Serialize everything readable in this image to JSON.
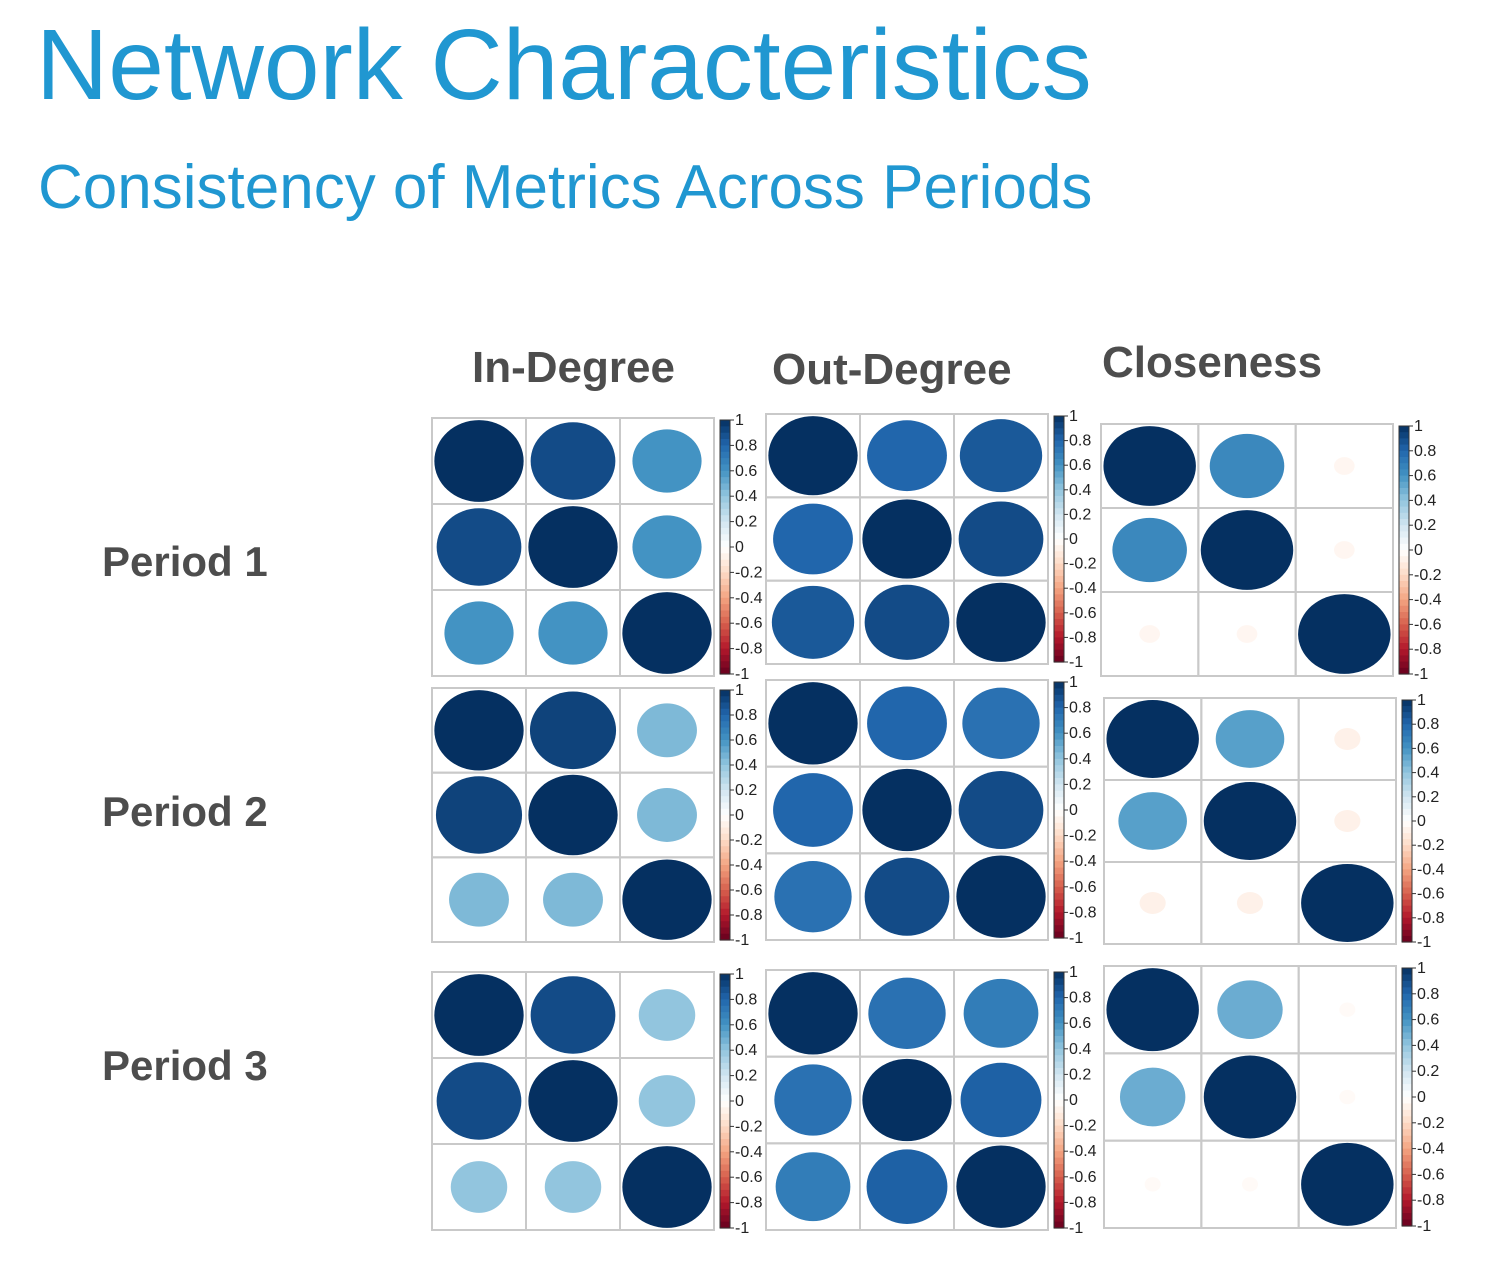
{
  "title": "Network Characteristics",
  "subtitle": "Consistency of Metrics Across Periods",
  "columns": [
    "In-Degree",
    "Out-Degree",
    "Closeness"
  ],
  "rows": [
    "Period 1",
    "Period 2",
    "Period 3"
  ],
  "chart_data": {
    "type": "heatmap",
    "subtype": "correlation-circle-matrix",
    "colorbar": {
      "range": [
        -1,
        1
      ],
      "tick_labels": [
        "1",
        "0.8",
        "0.6",
        "0.4",
        "0.2",
        "0",
        "-0.2",
        "-0.4",
        "-0.6",
        "-0.8",
        "-1"
      ]
    },
    "palette": {
      "negative": "#67001f",
      "neutral": "#ffffff",
      "positive": "#053061"
    },
    "panels": [
      {
        "row": "Period 1",
        "column": "In-Degree",
        "matrix": [
          [
            1,
            0.9,
            0.6
          ],
          [
            0.9,
            1,
            0.6
          ],
          [
            0.6,
            0.6,
            1
          ]
        ]
      },
      {
        "row": "Period 1",
        "column": "Out-Degree",
        "matrix": [
          [
            1,
            0.8,
            0.85
          ],
          [
            0.8,
            1,
            0.9
          ],
          [
            0.85,
            0.9,
            1
          ]
        ]
      },
      {
        "row": "Period 1",
        "column": "Closeness",
        "matrix": [
          [
            1,
            0.65,
            -0.05
          ],
          [
            0.65,
            1,
            -0.05
          ],
          [
            -0.05,
            -0.05,
            1
          ]
        ]
      },
      {
        "row": "Period 2",
        "column": "In-Degree",
        "matrix": [
          [
            1,
            0.93,
            0.45
          ],
          [
            0.93,
            1,
            0.45
          ],
          [
            0.45,
            0.45,
            1
          ]
        ]
      },
      {
        "row": "Period 2",
        "column": "Out-Degree",
        "matrix": [
          [
            1,
            0.8,
            0.75
          ],
          [
            0.8,
            1,
            0.9
          ],
          [
            0.75,
            0.9,
            1
          ]
        ]
      },
      {
        "row": "Period 2",
        "column": "Closeness",
        "matrix": [
          [
            1,
            0.55,
            -0.08
          ],
          [
            0.55,
            1,
            -0.08
          ],
          [
            -0.08,
            -0.08,
            1
          ]
        ]
      },
      {
        "row": "Period 3",
        "column": "In-Degree",
        "matrix": [
          [
            1,
            0.9,
            0.4
          ],
          [
            0.9,
            1,
            0.4
          ],
          [
            0.4,
            0.4,
            1
          ]
        ]
      },
      {
        "row": "Period 3",
        "column": "Out-Degree",
        "matrix": [
          [
            1,
            0.75,
            0.7
          ],
          [
            0.75,
            1,
            0.82
          ],
          [
            0.7,
            0.82,
            1
          ]
        ]
      },
      {
        "row": "Period 3",
        "column": "Closeness",
        "matrix": [
          [
            1,
            0.5,
            -0.03
          ],
          [
            0.5,
            1,
            -0.03
          ],
          [
            -0.03,
            -0.03,
            1
          ]
        ]
      }
    ]
  }
}
